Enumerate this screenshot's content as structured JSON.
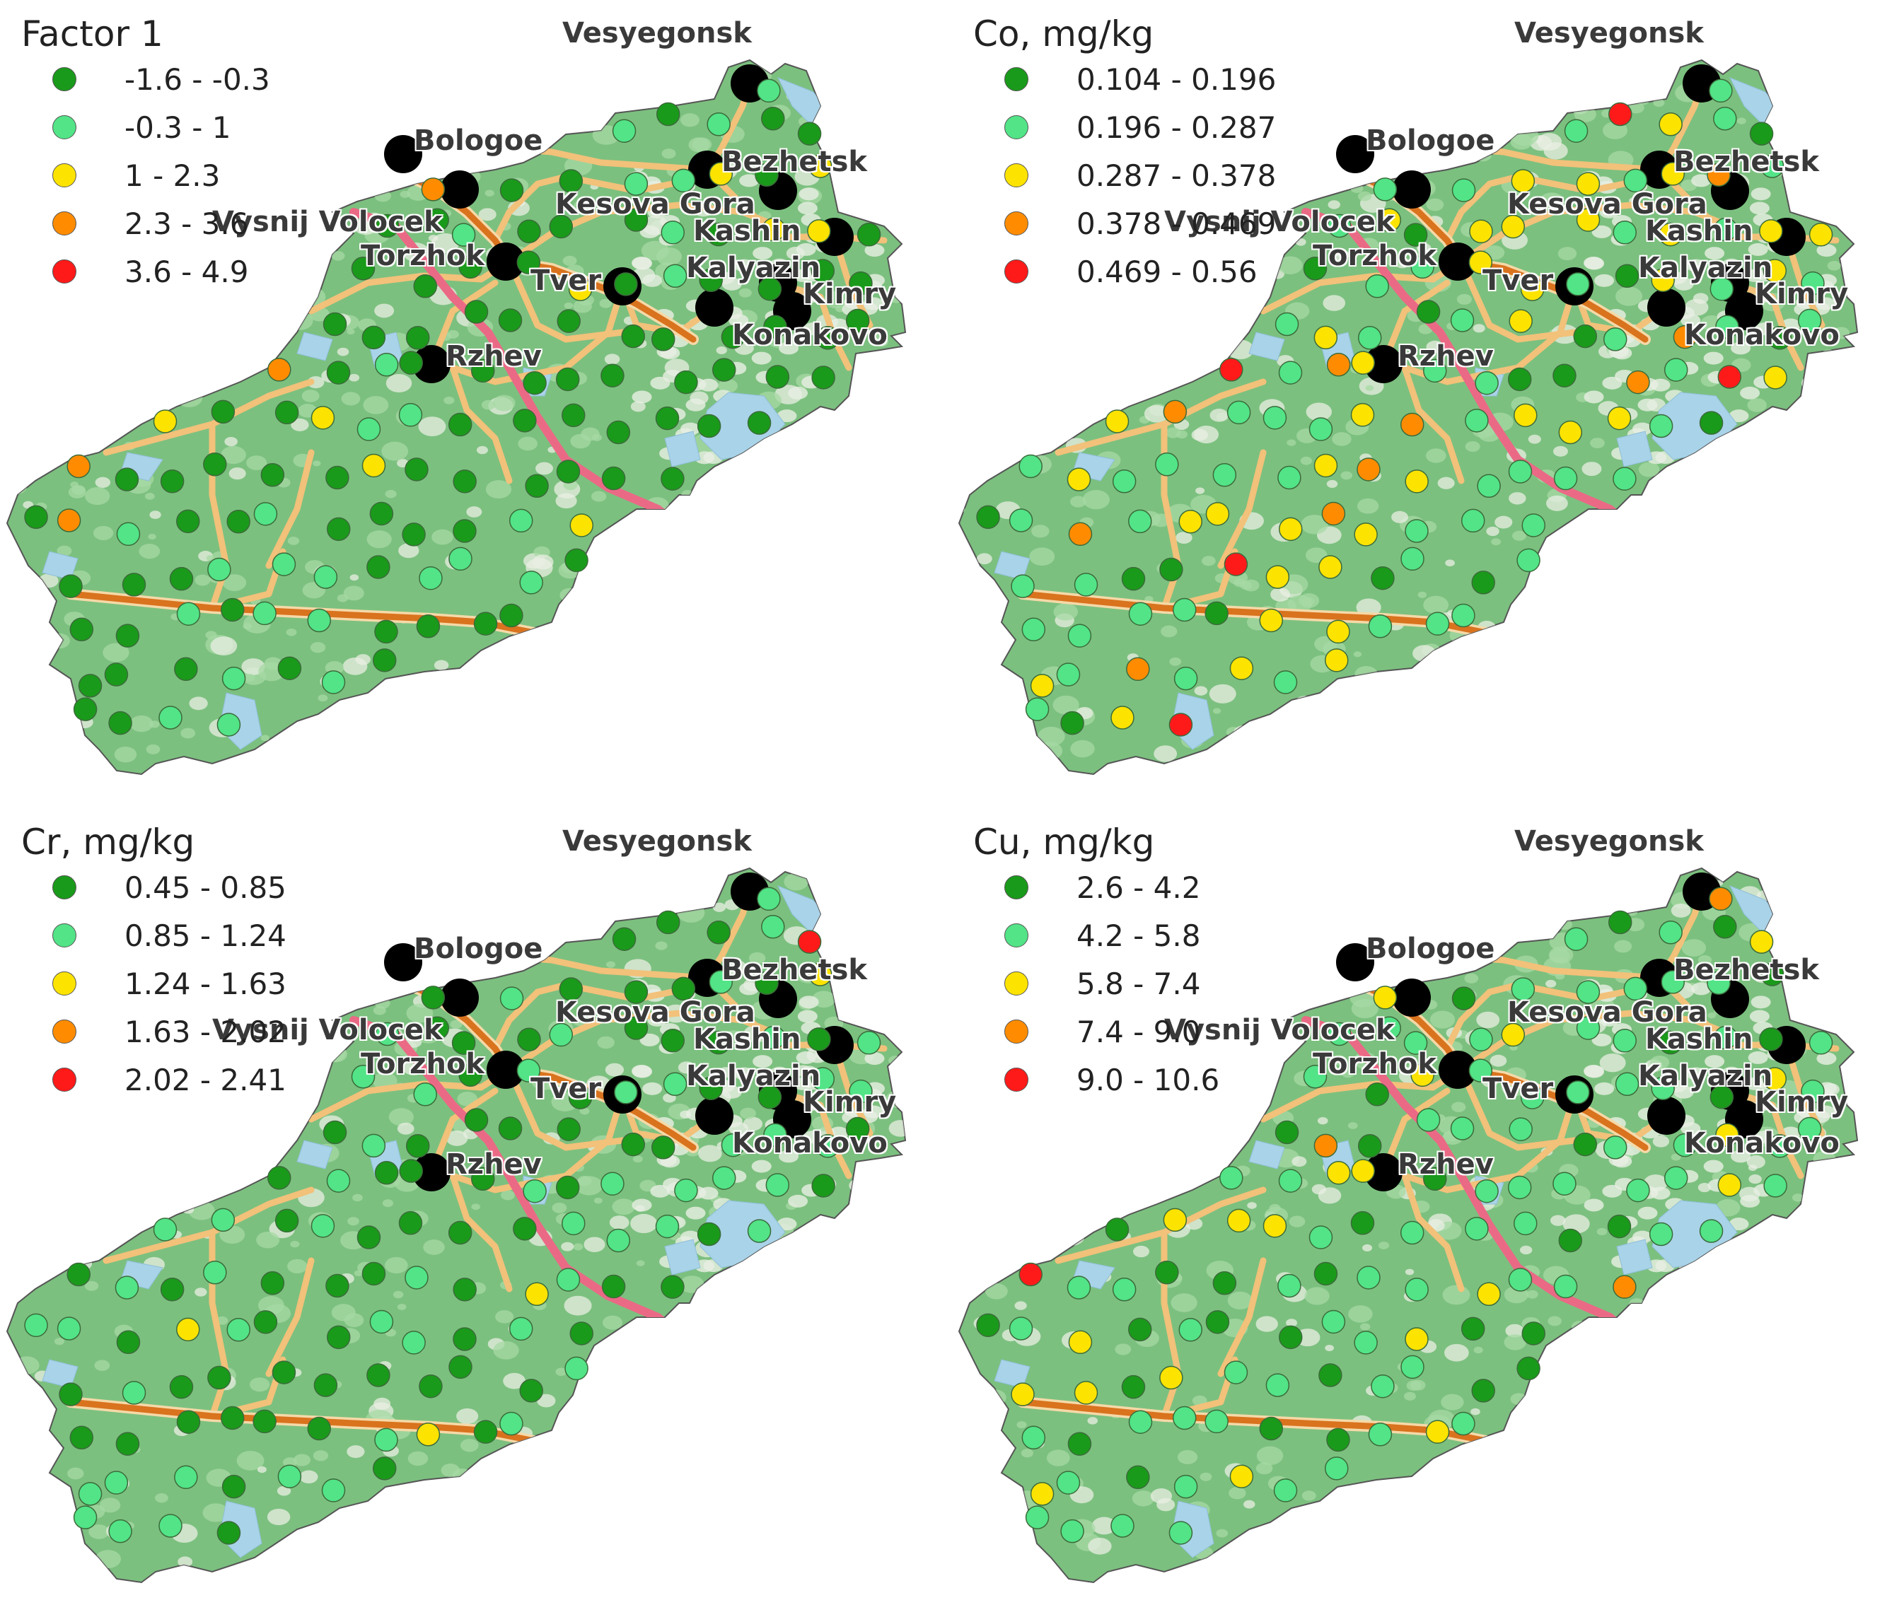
{
  "colors": {
    "land": "#7cc07f",
    "land_light": "#a7d9a4",
    "clearing": "#e9efe3",
    "water": "#a9d3e8",
    "road_major": "#f2c17a",
    "road_highway": "#d9731e",
    "road_rail": "#ea6a86",
    "city": "#000000"
  },
  "class_colors": [
    "#1a9a1a",
    "#52e487",
    "#fde300",
    "#ff8c00",
    "#ff1a1a"
  ],
  "cities": [
    "Vesyegonsk",
    "Bologoe",
    "Bezhetsk",
    "Kesova Gora",
    "Vysnij Volocek",
    "Kashin",
    "Torzhok",
    "Kalyazin",
    "Tver",
    "Kimry",
    "Konakovo",
    "Rzhev"
  ],
  "panels": [
    {
      "title": "Factor 1",
      "legend": [
        "-1.6 - -0.3",
        "-0.3 - 1",
        "1 - 2.3",
        "2.3 - 3.6",
        "3.6 - 4.9"
      ]
    },
    {
      "title": "Co, mg/kg",
      "legend": [
        "0.104 - 0.196",
        "0.196 - 0.287",
        "0.287 - 0.378",
        "0.378 - 0.469",
        "0.469 - 0.56"
      ]
    },
    {
      "title": "Cr, mg/kg",
      "legend": [
        "0.45 - 0.85",
        "0.85 - 1.24",
        "1.24 - 1.63",
        "1.63 - 2.02",
        "2.02 - 2.41"
      ]
    },
    {
      "title": "Cu, mg/kg",
      "legend": [
        "2.6 - 4.2",
        "4.2 - 5.8",
        "5.8 - 7.4",
        "7.4 - 9.0",
        "9.0 - 10.6"
      ]
    }
  ]
}
